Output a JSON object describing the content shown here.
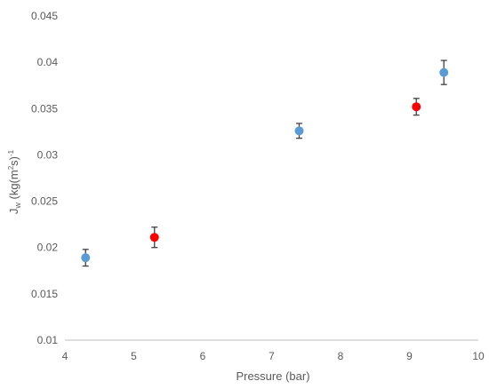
{
  "chart_data": {
    "type": "scatter",
    "xlabel": "Pressure (bar)",
    "ylabel_parts": {
      "j": "J",
      "w": "w",
      "mid": " (kg(m",
      "two": "2",
      "end": "s)",
      "exp": "-1"
    },
    "xlim": [
      4,
      10
    ],
    "ylim": [
      0.01,
      0.045
    ],
    "x_ticks": [
      "4",
      "5",
      "6",
      "7",
      "8",
      "9",
      "10"
    ],
    "y_ticks": [
      "0.01",
      "0.015",
      "0.02",
      "0.025",
      "0.03",
      "0.035",
      "0.04",
      "0.045"
    ],
    "grid": false,
    "series": [
      {
        "color": "#5b9bd5",
        "points": [
          {
            "x": 4.3,
            "y": 0.0189,
            "err": 0.0009
          },
          {
            "x": 7.4,
            "y": 0.0326,
            "err": 0.0008
          },
          {
            "x": 9.5,
            "y": 0.0389,
            "err": 0.0013
          }
        ]
      },
      {
        "color": "#ff0000",
        "points": [
          {
            "x": 5.3,
            "y": 0.0211,
            "err": 0.0011
          },
          {
            "x": 9.1,
            "y": 0.0352,
            "err": 0.0009
          }
        ]
      }
    ]
  }
}
